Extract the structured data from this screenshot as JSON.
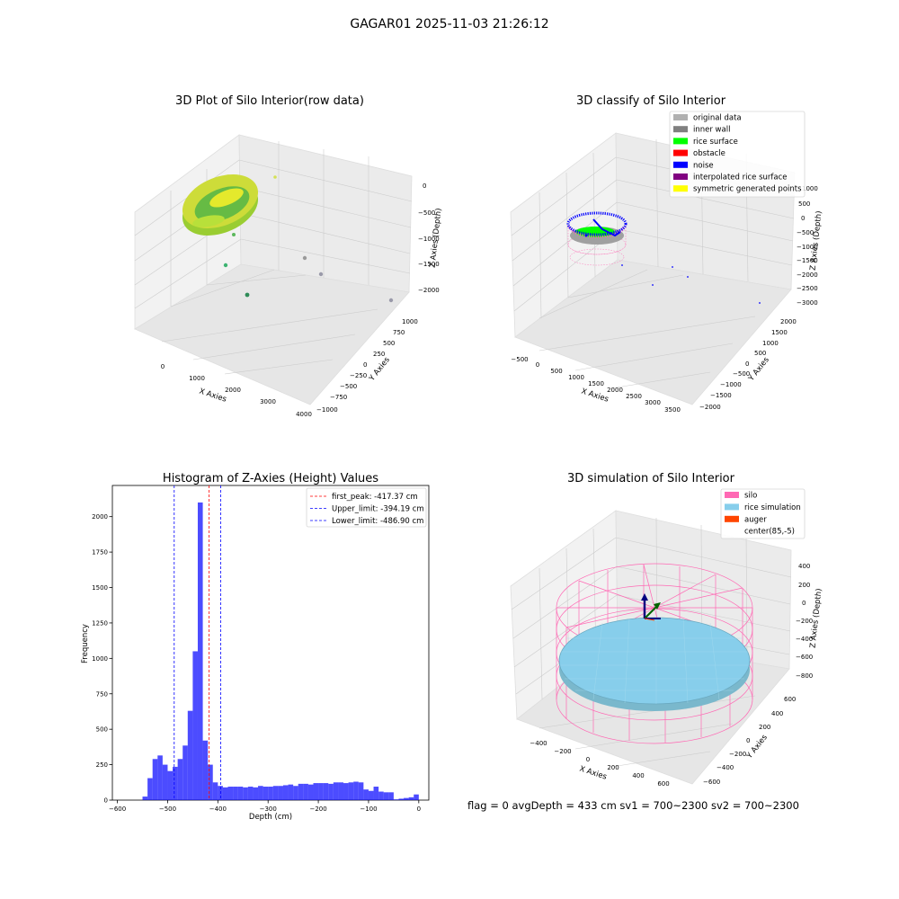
{
  "figure": {
    "suptitle": "GAGAR01 2025-11-03 21:26:12",
    "status": "flag = 0     avgDepth = 433 cm  sv1 = 700~2300  sv2 = 700~2300"
  },
  "panels": {
    "raw": {
      "title": "3D Plot of Silo Interior(row data)",
      "xlabel": "X Axies",
      "ylabel": "Y Axies",
      "zlabel": "Z Axies (Depth)",
      "xticks": [
        "0",
        "1000",
        "2000",
        "3000",
        "4000"
      ],
      "yticks": [
        "1000",
        "750",
        "500",
        "250",
        "0",
        "−250",
        "−500",
        "−750",
        "−1000"
      ],
      "zticks": [
        "0",
        "−500",
        "−1000",
        "−1500",
        "−2000"
      ]
    },
    "classify": {
      "title": "3D classify of Silo Interior",
      "xlabel": "X Axies",
      "ylabel": "Y Axies",
      "zlabel": "Z Axies (Depth)",
      "xticks": [
        "−500",
        "0",
        "500",
        "1000",
        "1500",
        "2000",
        "2500",
        "3000",
        "3500"
      ],
      "yticks": [
        "2000",
        "1500",
        "1000",
        "500",
        "0",
        "−500",
        "−1000",
        "−1500",
        "−2000"
      ],
      "zticks": [
        "1000",
        "500",
        "0",
        "−500",
        "−1000",
        "−1500",
        "−2000",
        "−2500",
        "−3000"
      ],
      "legend": [
        {
          "label": "original data",
          "color": "#b0b0b0"
        },
        {
          "label": "inner wall",
          "color": "#808080"
        },
        {
          "label": "rice surface",
          "color": "#00ff00"
        },
        {
          "label": "obstacle",
          "color": "#ff0000"
        },
        {
          "label": "noise",
          "color": "#0000ff"
        },
        {
          "label": "interpolated rice surface",
          "color": "#800080"
        },
        {
          "label": "symmetric generated points",
          "color": "#ffff00"
        }
      ]
    },
    "simulation": {
      "title": "3D simulation of Silo Interior",
      "xlabel": "X Axies",
      "ylabel": "Y Axies",
      "zlabel": "Z Axies (Depth)",
      "xticks": [
        "−400",
        "−200",
        "0",
        "200",
        "400",
        "600"
      ],
      "yticks": [
        "600",
        "400",
        "200",
        "0",
        "−200",
        "−400",
        "−600"
      ],
      "zticks": [
        "400",
        "200",
        "0",
        "−200",
        "−400",
        "−600",
        "−800"
      ],
      "legend": [
        {
          "label": "silo",
          "color": "#ff69b4"
        },
        {
          "label": "rice simulation",
          "color": "#87ceeb"
        },
        {
          "label": "auger",
          "color": "#ff4500"
        },
        {
          "label": "center(85,-5)",
          "color": "#ffffff"
        }
      ]
    }
  },
  "chart_data": {
    "type": "bar",
    "title": "Histogram of Z-Axies (Height) Values",
    "xlabel": "Depth (cm)",
    "ylabel": "Frequency",
    "xlim": [
      -610,
      20
    ],
    "ylim": [
      0,
      2220
    ],
    "xticks": [
      -600,
      -500,
      -400,
      -300,
      -200,
      -100,
      0
    ],
    "yticks": [
      0,
      250,
      500,
      750,
      1000,
      1250,
      1500,
      1750,
      2000
    ],
    "bar_color": "#0000ff",
    "bins": [
      [
        -550,
        -540,
        25
      ],
      [
        -540,
        -530,
        155
      ],
      [
        -530,
        -520,
        290
      ],
      [
        -520,
        -510,
        315
      ],
      [
        -510,
        -500,
        250
      ],
      [
        -500,
        -490,
        205
      ],
      [
        -490,
        -480,
        235
      ],
      [
        -480,
        -470,
        290
      ],
      [
        -470,
        -460,
        385
      ],
      [
        -460,
        -450,
        630
      ],
      [
        -450,
        -440,
        1050
      ],
      [
        -440,
        -430,
        2100
      ],
      [
        -430,
        -420,
        420
      ],
      [
        -420,
        -410,
        250
      ],
      [
        -410,
        -400,
        125
      ],
      [
        -400,
        -390,
        100
      ],
      [
        -390,
        -380,
        90
      ],
      [
        -380,
        -370,
        95
      ],
      [
        -370,
        -360,
        95
      ],
      [
        -360,
        -350,
        95
      ],
      [
        -350,
        -340,
        90
      ],
      [
        -340,
        -330,
        95
      ],
      [
        -330,
        -320,
        90
      ],
      [
        -320,
        -310,
        100
      ],
      [
        -310,
        -300,
        95
      ],
      [
        -300,
        -290,
        95
      ],
      [
        -290,
        -280,
        100
      ],
      [
        -280,
        -270,
        100
      ],
      [
        -270,
        -260,
        105
      ],
      [
        -260,
        -250,
        110
      ],
      [
        -250,
        -240,
        100
      ],
      [
        -240,
        -230,
        115
      ],
      [
        -230,
        -220,
        115
      ],
      [
        -220,
        -210,
        110
      ],
      [
        -210,
        -200,
        120
      ],
      [
        -200,
        -190,
        120
      ],
      [
        -190,
        -180,
        120
      ],
      [
        -180,
        -170,
        115
      ],
      [
        -170,
        -160,
        125
      ],
      [
        -160,
        -150,
        125
      ],
      [
        -150,
        -140,
        120
      ],
      [
        -140,
        -130,
        125
      ],
      [
        -130,
        -120,
        130
      ],
      [
        -120,
        -110,
        125
      ],
      [
        -110,
        -100,
        75
      ],
      [
        -100,
        -90,
        65
      ],
      [
        -90,
        -80,
        95
      ],
      [
        -80,
        -70,
        60
      ],
      [
        -70,
        -60,
        55
      ],
      [
        -60,
        -50,
        55
      ],
      [
        -50,
        -40,
        5
      ],
      [
        -40,
        -30,
        10
      ],
      [
        -30,
        -20,
        15
      ],
      [
        -20,
        -10,
        20
      ],
      [
        -10,
        0,
        40
      ]
    ],
    "lines": [
      {
        "label": "first_peak: -417.37 cm",
        "x": -417.37,
        "color": "#ff0000"
      },
      {
        "label": "Upper_limit: -394.19 cm",
        "x": -394.19,
        "color": "#0000ff"
      },
      {
        "label": "Lower_limit: -486.90 cm",
        "x": -486.9,
        "color": "#0000ff"
      }
    ]
  }
}
